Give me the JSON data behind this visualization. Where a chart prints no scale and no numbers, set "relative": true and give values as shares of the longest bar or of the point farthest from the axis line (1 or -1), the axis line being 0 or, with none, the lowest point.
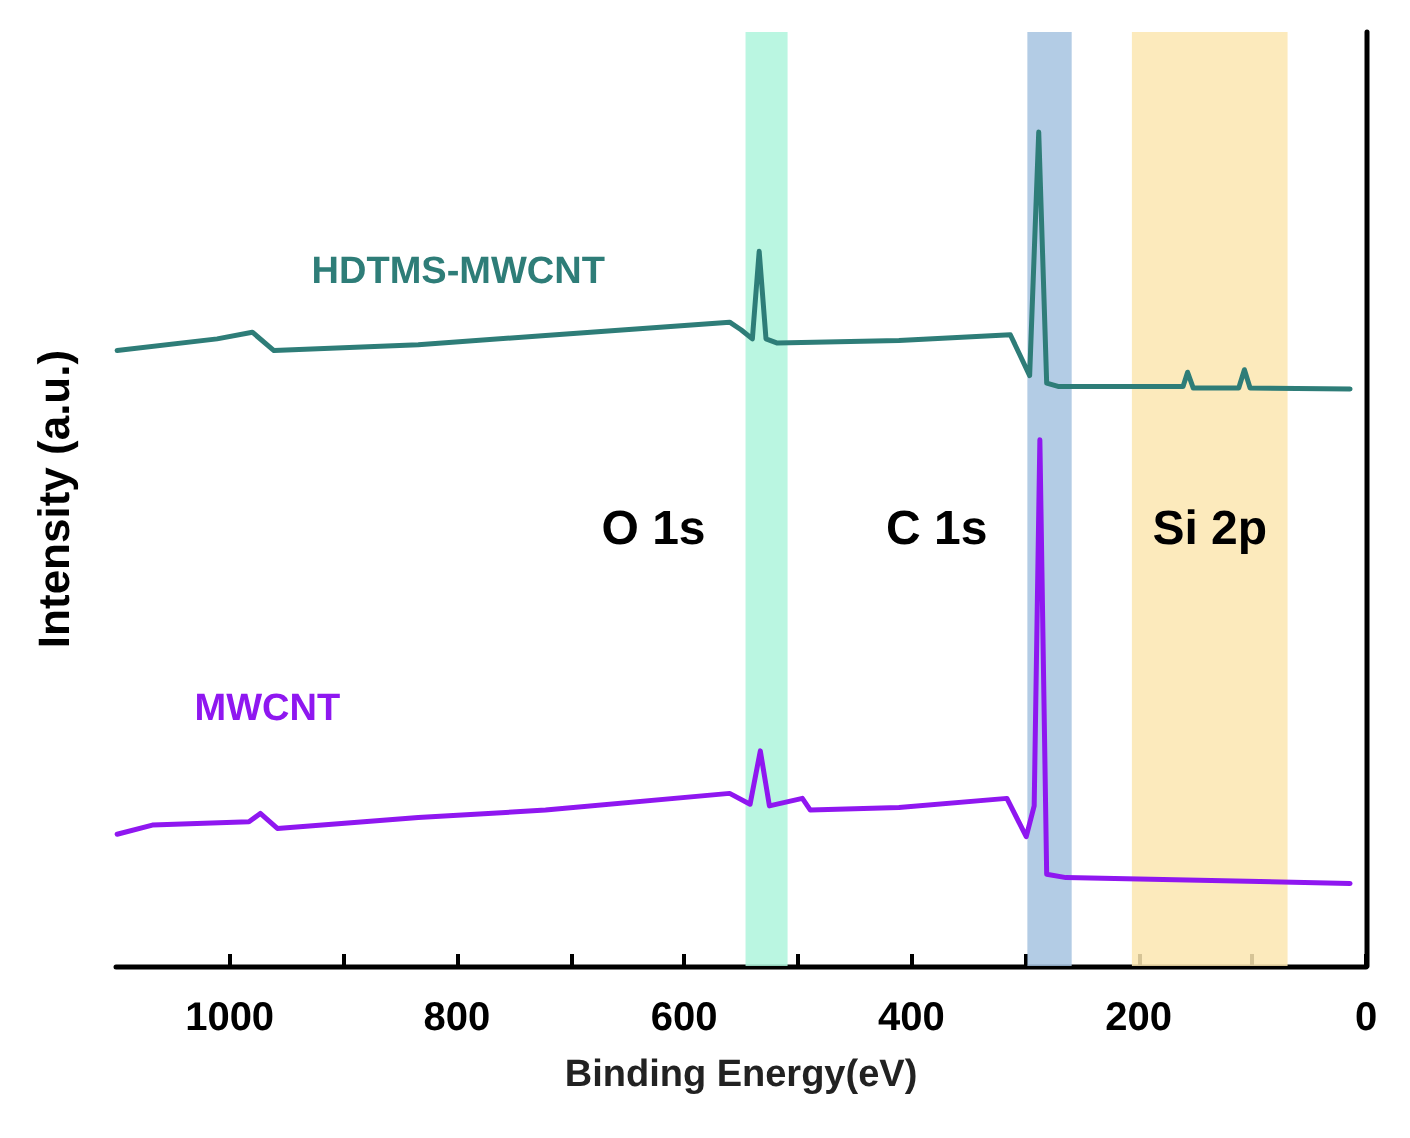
{
  "chart_data": {
    "type": "line",
    "relative": true,
    "xlabel": "Binding Energy(eV)",
    "ylabel": "Intensity (a.u.)",
    "xlim": [
      1100,
      0
    ],
    "xticks": [
      1000,
      {
        "value": 900,
        "label": null
      },
      800,
      {
        "value": 700,
        "label": null
      },
      600,
      {
        "value": 500,
        "label": null
      },
      400,
      {
        "value": 300,
        "label": null
      },
      200,
      {
        "value": 100,
        "label": null
      },
      0
    ],
    "tick_labels": "x",
    "grid": false,
    "legend": false,
    "marker": "none",
    "line_style": "solid",
    "bands": [
      {
        "axis": "x",
        "from": 546,
        "to": 509,
        "label": "O 1s",
        "color": "#aef5dc"
      },
      {
        "axis": "x",
        "from": 298,
        "to": 259,
        "label": "C 1s",
        "color": "#a6c3e0"
      },
      {
        "axis": "x",
        "from": 206,
        "to": 69,
        "label": "Si 2p",
        "color": "#fbe6b0"
      }
    ],
    "series": [
      {
        "name": "HDTMS-MWCNT",
        "color": "#2e7d78",
        "x": [
          1099,
          1011,
          980,
          961,
          834,
          722,
          560,
          550,
          540,
          534,
          528,
          518,
          411,
          313,
          296,
          288,
          281,
          271,
          161,
          157,
          152,
          112,
          107,
          102,
          14
        ],
        "values": [
          0.738,
          0.752,
          0.76,
          0.738,
          0.745,
          0.756,
          0.772,
          0.763,
          0.752,
          0.857,
          0.752,
          0.747,
          0.75,
          0.757,
          0.708,
          1.0,
          0.699,
          0.695,
          0.695,
          0.712,
          0.693,
          0.693,
          0.715,
          0.693,
          0.692
        ]
      },
      {
        "name": "MWCNT",
        "color": "#8f17f0",
        "x": [
          1099,
          1068,
          983,
          973,
          958,
          834,
          722,
          560,
          542,
          533,
          525,
          496,
          489,
          411,
          316,
          299,
          292,
          287,
          281,
          264,
          14
        ],
        "values": [
          0.158,
          0.169,
          0.173,
          0.183,
          0.165,
          0.178,
          0.187,
          0.207,
          0.194,
          0.258,
          0.192,
          0.201,
          0.187,
          0.19,
          0.201,
          0.155,
          0.192,
          0.631,
          0.11,
          0.106,
          0.099
        ]
      }
    ]
  }
}
